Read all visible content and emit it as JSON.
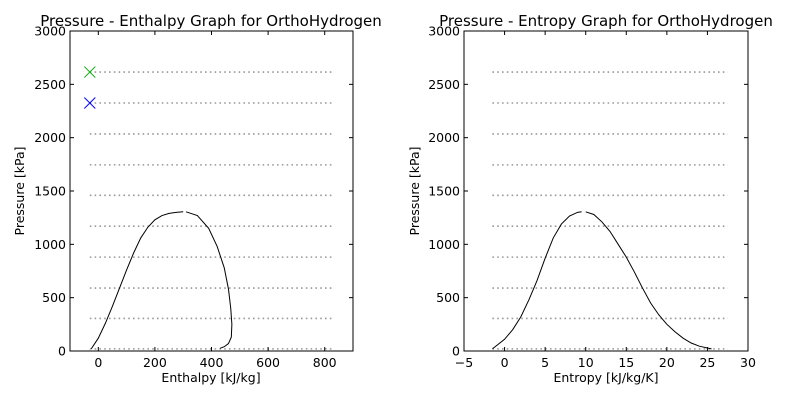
{
  "chart_data": [
    {
      "type": "line",
      "title": "Pressure - Enthalpy Graph for OrthoHydrogen",
      "xlabel": "Enthalpy [kJ/kg]",
      "ylabel": "Pressure [kPa]",
      "xlim": [
        -100,
        900
      ],
      "ylim": [
        0,
        3000
      ],
      "xticks": [
        0,
        200,
        400,
        600,
        800
      ],
      "xtick_labels": [
        "0",
        "200",
        "400",
        "600",
        "800"
      ],
      "yticks": [
        0,
        500,
        1000,
        1500,
        2000,
        2500,
        3000
      ],
      "ytick_labels": [
        "0",
        "500",
        "1000",
        "1500",
        "2000",
        "2500",
        "3000"
      ],
      "grid": false,
      "saturation_liquid": {
        "x": [
          -25,
          0,
          25,
          50,
          75,
          100,
          125,
          150,
          175,
          200,
          225,
          250,
          275,
          300
        ],
        "y": [
          20,
          120,
          260,
          420,
          590,
          760,
          920,
          1060,
          1160,
          1230,
          1270,
          1290,
          1300,
          1305
        ]
      },
      "saturation_vapor": {
        "x": [
          310,
          350,
          390,
          420,
          445,
          460,
          468,
          472,
          470,
          460,
          445,
          430
        ],
        "y": [
          1305,
          1270,
          1150,
          980,
          780,
          580,
          400,
          250,
          130,
          70,
          40,
          25
        ]
      },
      "isobar_levels": [
        20,
        305,
        590,
        880,
        1170,
        1460,
        1745,
        2035,
        2325,
        2615
      ],
      "isobar_x_range": [
        -30,
        825
      ],
      "markers": [
        {
          "x": -30,
          "y": 2615,
          "color": "#00aa00",
          "symbol": "x"
        },
        {
          "x": -30,
          "y": 2325,
          "color": "#0000ff",
          "symbol": "x"
        }
      ],
      "line_color": "#000000",
      "isobar_color": "#999999"
    },
    {
      "type": "line",
      "title": "Pressure - Entropy Graph for OrthoHydrogen",
      "xlabel": "Entropy [kJ/kg/K]",
      "ylabel": "Pressure [kPa]",
      "xlim": [
        -5,
        30
      ],
      "ylim": [
        0,
        3000
      ],
      "xticks": [
        -5,
        0,
        5,
        10,
        15,
        20,
        25,
        30
      ],
      "xtick_labels": [
        "−5",
        "0",
        "5",
        "10",
        "15",
        "20",
        "25",
        "30"
      ],
      "yticks": [
        0,
        500,
        1000,
        1500,
        2000,
        2500,
        3000
      ],
      "ytick_labels": [
        "0",
        "500",
        "1000",
        "1500",
        "2000",
        "2500",
        "3000"
      ],
      "grid": false,
      "saturation_liquid": {
        "x": [
          -1.5,
          0,
          1,
          2,
          3,
          4,
          5,
          6,
          7,
          8,
          9,
          9.5
        ],
        "y": [
          20,
          110,
          200,
          320,
          480,
          660,
          870,
          1060,
          1190,
          1265,
          1300,
          1305
        ]
      },
      "saturation_vapor": {
        "x": [
          10,
          11,
          12,
          13,
          14,
          15,
          16,
          17,
          18,
          19,
          20,
          21,
          22,
          23,
          24,
          25.5
        ],
        "y": [
          1305,
          1280,
          1210,
          1120,
          1000,
          880,
          740,
          590,
          450,
          340,
          250,
          180,
          120,
          75,
          45,
          20
        ]
      },
      "isobar_levels": [
        20,
        305,
        590,
        880,
        1170,
        1460,
        1745,
        2035,
        2325,
        2615
      ],
      "isobar_x_range": [
        -1.5,
        27.5
      ],
      "markers": [],
      "line_color": "#000000",
      "isobar_color": "#999999"
    }
  ]
}
